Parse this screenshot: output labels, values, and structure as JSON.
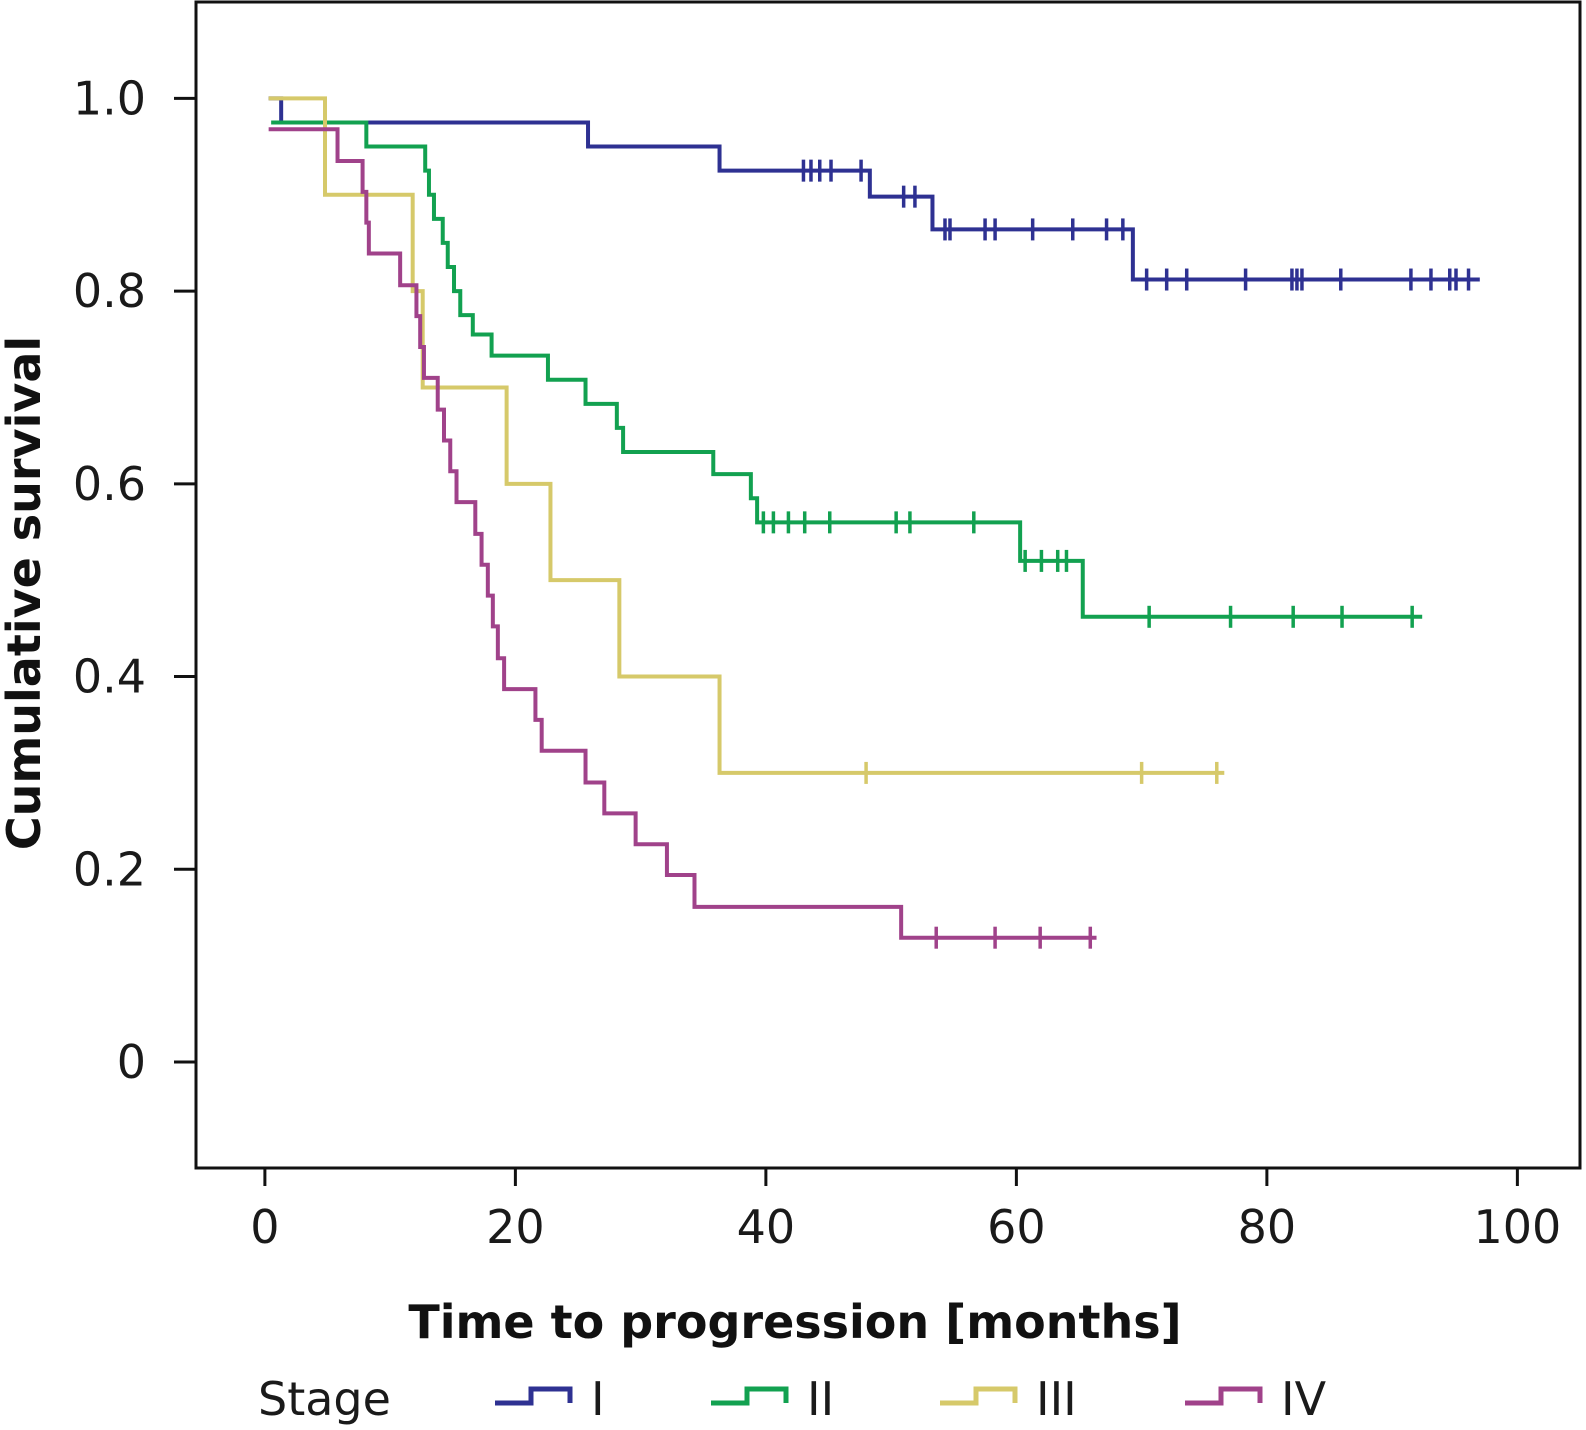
{
  "chart_data": {
    "type": "line",
    "step": "kaplan-meier",
    "title": "",
    "xlabel": "Time to progression [months]",
    "ylabel": "Cumulative survival",
    "xlim": [
      -5.5,
      105
    ],
    "ylim": [
      -0.11,
      1.1
    ],
    "xticks": [
      0,
      20,
      40,
      60,
      80,
      100
    ],
    "xtick_labels": [
      "0",
      "20",
      "40",
      "60",
      "80",
      "100"
    ],
    "yticks": [
      0,
      0.2,
      0.4,
      0.6,
      0.8,
      1.0
    ],
    "ytick_labels": [
      "0",
      "0.2",
      "0.4",
      "0.6",
      "0.8",
      "1.0"
    ],
    "grid": false,
    "legend": {
      "title": "Stage",
      "placement": "bottom"
    },
    "series": [
      {
        "name": "I",
        "color": "#2e3192",
        "steps": [
          [
            0.3,
            1.0
          ],
          [
            1.3,
            0.975
          ],
          [
            25.8,
            0.95
          ],
          [
            36.3,
            0.925
          ],
          [
            48.3,
            0.898
          ],
          [
            53.3,
            0.864
          ],
          [
            69.3,
            0.812
          ],
          [
            97,
            0.812
          ]
        ],
        "censored": [
          [
            43,
            0.925
          ],
          [
            43.6,
            0.925
          ],
          [
            44.3,
            0.925
          ],
          [
            45.2,
            0.925
          ],
          [
            47.6,
            0.925
          ],
          [
            51,
            0.898
          ],
          [
            51.9,
            0.898
          ],
          [
            54.3,
            0.864
          ],
          [
            54.7,
            0.864
          ],
          [
            57.5,
            0.864
          ],
          [
            58.3,
            0.864
          ],
          [
            61.3,
            0.864
          ],
          [
            64.5,
            0.864
          ],
          [
            67.2,
            0.864
          ],
          [
            68.5,
            0.864
          ],
          [
            70.4,
            0.812
          ],
          [
            72,
            0.812
          ],
          [
            73.6,
            0.812
          ],
          [
            78.3,
            0.812
          ],
          [
            82,
            0.812
          ],
          [
            82.4,
            0.812
          ],
          [
            82.8,
            0.812
          ],
          [
            85.9,
            0.812
          ],
          [
            91.5,
            0.812
          ],
          [
            93.1,
            0.812
          ],
          [
            94.6,
            0.812
          ],
          [
            95.1,
            0.812
          ],
          [
            96.1,
            0.812
          ]
        ]
      },
      {
        "name": "II",
        "color": "#12a150",
        "steps": [
          [
            0.5,
            0.975
          ],
          [
            8.1,
            0.95
          ],
          [
            12.8,
            0.925
          ],
          [
            13.1,
            0.9
          ],
          [
            13.5,
            0.875
          ],
          [
            14.2,
            0.85
          ],
          [
            14.6,
            0.825
          ],
          [
            15.1,
            0.8
          ],
          [
            15.6,
            0.775
          ],
          [
            16.6,
            0.755
          ],
          [
            18.1,
            0.733
          ],
          [
            22.6,
            0.708
          ],
          [
            25.6,
            0.683
          ],
          [
            28.1,
            0.658
          ],
          [
            28.6,
            0.633
          ],
          [
            35.8,
            0.61
          ],
          [
            38.8,
            0.585
          ],
          [
            39.3,
            0.56
          ],
          [
            60.3,
            0.52
          ],
          [
            65.3,
            0.462
          ],
          [
            92.4,
            0.462
          ]
        ],
        "censored": [
          [
            39.8,
            0.56
          ],
          [
            40.6,
            0.56
          ],
          [
            41.8,
            0.56
          ],
          [
            43.1,
            0.56
          ],
          [
            45.1,
            0.56
          ],
          [
            50.4,
            0.56
          ],
          [
            51.5,
            0.56
          ],
          [
            56.6,
            0.56
          ],
          [
            60.7,
            0.52
          ],
          [
            62,
            0.52
          ],
          [
            63.3,
            0.52
          ],
          [
            64,
            0.52
          ],
          [
            70.6,
            0.462
          ],
          [
            77.1,
            0.462
          ],
          [
            82.1,
            0.462
          ],
          [
            86,
            0.462
          ],
          [
            91.6,
            0.462
          ]
        ]
      },
      {
        "name": "III",
        "color": "#d6c96a",
        "steps": [
          [
            0.3,
            1.0
          ],
          [
            4.8,
            0.9
          ],
          [
            11.8,
            0.8
          ],
          [
            12.6,
            0.7
          ],
          [
            19.3,
            0.6
          ],
          [
            22.8,
            0.5
          ],
          [
            28.3,
            0.4
          ],
          [
            36.3,
            0.3
          ],
          [
            76.6,
            0.3
          ]
        ],
        "censored": [
          [
            48,
            0.3
          ],
          [
            70,
            0.3
          ],
          [
            76,
            0.3
          ]
        ]
      },
      {
        "name": "IV",
        "color": "#a0428a",
        "steps": [
          [
            0.3,
            0.968
          ],
          [
            5.8,
            0.935
          ],
          [
            7.8,
            0.903
          ],
          [
            8.1,
            0.871
          ],
          [
            8.3,
            0.839
          ],
          [
            10.8,
            0.806
          ],
          [
            12.1,
            0.774
          ],
          [
            12.4,
            0.742
          ],
          [
            12.7,
            0.71
          ],
          [
            13.8,
            0.677
          ],
          [
            14.3,
            0.645
          ],
          [
            14.8,
            0.613
          ],
          [
            15.3,
            0.581
          ],
          [
            16.8,
            0.548
          ],
          [
            17.3,
            0.516
          ],
          [
            17.8,
            0.484
          ],
          [
            18.2,
            0.452
          ],
          [
            18.6,
            0.419
          ],
          [
            19.1,
            0.387
          ],
          [
            21.6,
            0.355
          ],
          [
            22.1,
            0.323
          ],
          [
            25.6,
            0.29
          ],
          [
            27.1,
            0.258
          ],
          [
            29.6,
            0.226
          ],
          [
            32.1,
            0.194
          ],
          [
            34.3,
            0.161
          ],
          [
            50.8,
            0.129
          ],
          [
            66.4,
            0.129
          ]
        ],
        "censored": [
          [
            53.6,
            0.129
          ],
          [
            58.3,
            0.129
          ],
          [
            61.9,
            0.129
          ],
          [
            65.9,
            0.129
          ]
        ]
      }
    ]
  }
}
